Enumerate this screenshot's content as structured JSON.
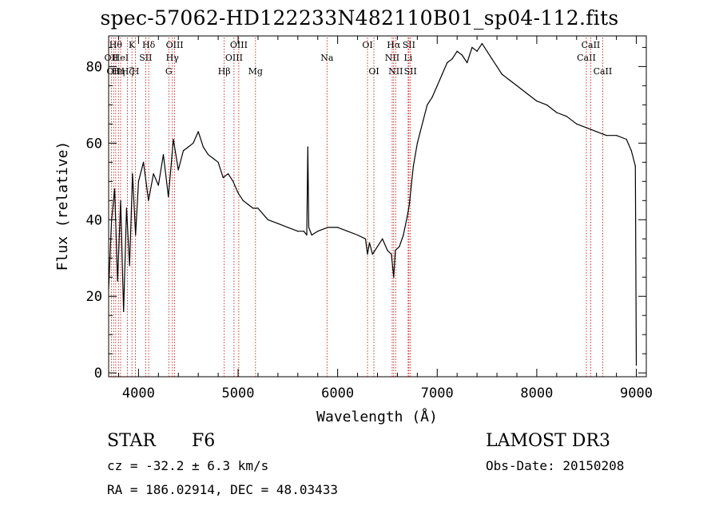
{
  "chart_data": {
    "type": "line",
    "title": "spec-57062-HD122233N482110B01_sp04-112.fits",
    "xlabel": "Wavelength (Å)",
    "ylabel": "Flux (relative)",
    "xlim": [
      3700,
      9100
    ],
    "ylim": [
      -1,
      88
    ],
    "xticks": [
      4000,
      5000,
      6000,
      7000,
      8000,
      9000
    ],
    "xtick_labels": [
      "4000",
      "5000",
      "6000",
      "7000",
      "8000",
      "9000"
    ],
    "yticks": [
      0,
      20,
      40,
      60,
      80
    ],
    "ytick_labels": [
      "0",
      "20",
      "40",
      "60",
      "80"
    ],
    "grid": false,
    "series": [
      {
        "name": "spectrum",
        "x": [
          3700,
          3730,
          3760,
          3790,
          3820,
          3850,
          3880,
          3910,
          3940,
          3970,
          4000,
          4050,
          4100,
          4150,
          4200,
          4250,
          4300,
          4350,
          4400,
          4450,
          4500,
          4550,
          4600,
          4650,
          4700,
          4750,
          4800,
          4850,
          4900,
          4950,
          5000,
          5050,
          5100,
          5150,
          5200,
          5300,
          5400,
          5500,
          5600,
          5660,
          5690,
          5700,
          5710,
          5740,
          5800,
          5900,
          6000,
          6100,
          6200,
          6280,
          6300,
          6320,
          6350,
          6400,
          6450,
          6500,
          6540,
          6563,
          6580,
          6620,
          6660,
          6700,
          6720,
          6740,
          6760,
          6780,
          6800,
          6830,
          6860,
          6900,
          6950,
          7000,
          7050,
          7100,
          7150,
          7200,
          7250,
          7300,
          7350,
          7400,
          7450,
          7500,
          7550,
          7600,
          7650,
          7700,
          7800,
          7900,
          8000,
          8100,
          8200,
          8300,
          8400,
          8500,
          8600,
          8700,
          8800,
          8900,
          8950,
          8990,
          9000
        ],
        "y": [
          22,
          40,
          48,
          24,
          45,
          16,
          43,
          28,
          52,
          36,
          50,
          55,
          45,
          52,
          49,
          57,
          46,
          61,
          53,
          58,
          59,
          60,
          63,
          59,
          57,
          56,
          55,
          51,
          52,
          50,
          47,
          45,
          44,
          43,
          43,
          40,
          39,
          38,
          37,
          37,
          36,
          59,
          38,
          36,
          37,
          38,
          38,
          37,
          36,
          35,
          31,
          34,
          31,
          33,
          35,
          32,
          31,
          25,
          32,
          33,
          36,
          41,
          44,
          49,
          54,
          57,
          60,
          63,
          66,
          70,
          72,
          75,
          78,
          81,
          82,
          84,
          83,
          81,
          85,
          84,
          86,
          84,
          82,
          80,
          78,
          77,
          75,
          73,
          71,
          70,
          68,
          67,
          65,
          64,
          63,
          62,
          62,
          61,
          58,
          54,
          2
        ]
      }
    ],
    "line_markers": [
      {
        "wavelength": 3727,
        "label": "OII",
        "row": 2
      },
      {
        "wavelength": 3750,
        "label": "OII",
        "row": 3
      },
      {
        "wavelength": 3771,
        "label": "Hθ",
        "row": 1
      },
      {
        "wavelength": 3798,
        "label": "Hη",
        "row": 3
      },
      {
        "wavelength": 3820,
        "label": "HeI",
        "row": 2
      },
      {
        "wavelength": 3889,
        "label": "Hζ",
        "row": 3
      },
      {
        "wavelength": 3934,
        "label": "K",
        "row": 1
      },
      {
        "wavelength": 3969,
        "label": "H",
        "row": 3
      },
      {
        "wavelength": 4072,
        "label": "SII",
        "row": 2
      },
      {
        "wavelength": 4102,
        "label": "Hδ",
        "row": 1
      },
      {
        "wavelength": 4304,
        "label": "G",
        "row": 3
      },
      {
        "wavelength": 4340,
        "label": "Hγ",
        "row": 2
      },
      {
        "wavelength": 4363,
        "label": "OIII",
        "row": 1
      },
      {
        "wavelength": 4861,
        "label": "Hβ",
        "row": 3
      },
      {
        "wavelength": 4959,
        "label": "OIII",
        "row": 2
      },
      {
        "wavelength": 5007,
        "label": "OIII",
        "row": 1
      },
      {
        "wavelength": 5175,
        "label": "Mg",
        "row": 3
      },
      {
        "wavelength": 5893,
        "label": "Na",
        "row": 2
      },
      {
        "wavelength": 6300,
        "label": "OI",
        "row": 1
      },
      {
        "wavelength": 6364,
        "label": "OI",
        "row": 3
      },
      {
        "wavelength": 6548,
        "label": "NII",
        "row": 2
      },
      {
        "wavelength": 6563,
        "label": "Hα",
        "row": 1
      },
      {
        "wavelength": 6583,
        "label": "NII",
        "row": 3
      },
      {
        "wavelength": 6708,
        "label": "Li",
        "row": 2
      },
      {
        "wavelength": 6716,
        "label": "SII",
        "row": 1
      },
      {
        "wavelength": 6731,
        "label": "SII",
        "row": 3
      },
      {
        "wavelength": 8498,
        "label": "CaII",
        "row": 2
      },
      {
        "wavelength": 8542,
        "label": "CaII",
        "row": 1
      },
      {
        "wavelength": 8662,
        "label": "CaII",
        "row": 3
      }
    ]
  },
  "info": {
    "object_type": "STAR",
    "subclass": "F6",
    "survey": "LAMOST DR3",
    "cz": "cz = -32.2 ± 6.3 km/s",
    "obs_date": "Obs-Date: 20150208",
    "coords": "RA = 186.02914, DEC =  48.03433"
  },
  "colors": {
    "spectrum": "#000000",
    "marker_line": "#c00000",
    "axis": "#000000"
  }
}
